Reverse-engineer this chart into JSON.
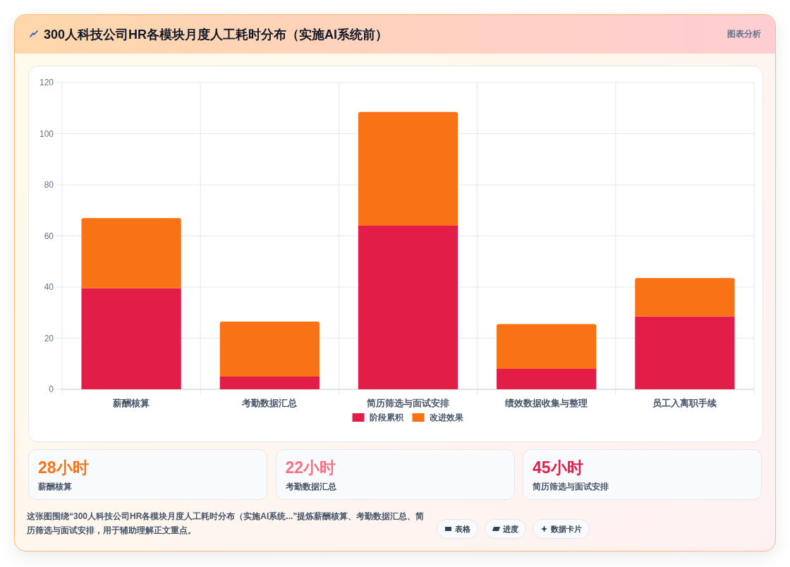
{
  "chart_data": [
    {
      "type": "bar",
      "title": "300人科技公司HR各模块月度人工耗时分布（实施AI系统前）",
      "categories": [
        "薪酬核算",
        "考勤数据汇总",
        "简历筛选与面试安排",
        "绩效数据收集与整理",
        "员工入离职手续"
      ],
      "series": [
        {
          "name": "阶段累积",
          "color": "#e11d48",
          "values": [
            39.5,
            5,
            64,
            8,
            28.5
          ]
        },
        {
          "name": "改进效果",
          "color": "#f97316",
          "values": [
            27.5,
            21.5,
            44.5,
            17.5,
            15
          ]
        }
      ],
      "stacked": true,
      "ylim": [
        0,
        120
      ],
      "yticks": [
        0,
        20,
        40,
        60,
        80,
        100,
        120
      ],
      "grid": true,
      "legend": "bottom",
      "annotations": [
        "图表分析",
        "这张图围绕“300人科技公司HR各模块月度人工耗时分布（实施AI系统...”提炼薪酬核算、考勤数据汇总、简历筛选与面试安排，用于辅助理解正文重点。",
        "表格",
        "进度",
        "数据卡片"
      ]
    },
    {
      "type": "other",
      "title": "28小时",
      "subtitle": "薪酬核算",
      "color": "#f97316"
    },
    {
      "type": "other",
      "title": "22小时",
      "subtitle": "考勤数据汇总",
      "color": "#fb7185"
    },
    {
      "type": "other",
      "title": "45小时",
      "subtitle": "简历筛选与面试安排",
      "color": "#e11d48"
    }
  ]
}
